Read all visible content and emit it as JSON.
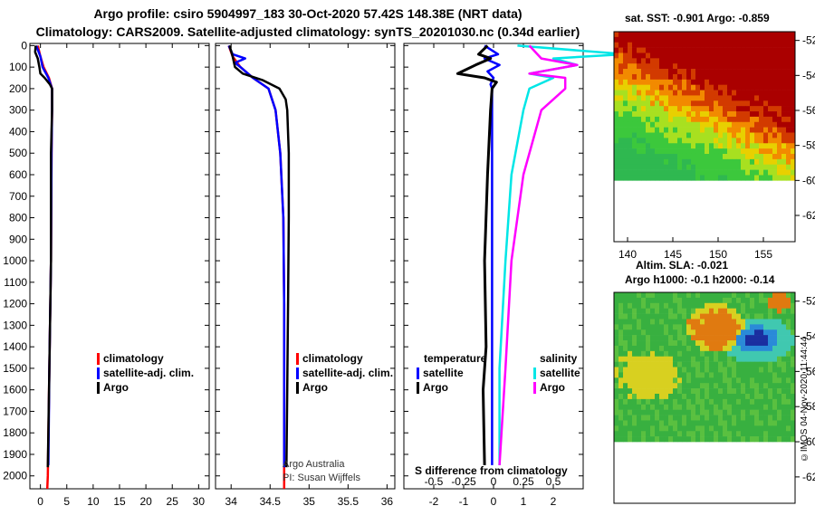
{
  "header": {
    "line1": "Argo profile: csiro 5904997_183 30-Oct-2020 57.42S 148.38E (NRT data)",
    "line2": "Climatology: CARS2009. Satellite-adjusted climatology: synTS_20201030.nc (0.34d earlier)"
  },
  "colors": {
    "climatology": "#ff0000",
    "satellite": "#0000ff",
    "argo": "#000000",
    "sat_salinity": "#00e6e6",
    "argo_salinity": "#ff00ff"
  },
  "chart_data": [
    {
      "type": "line",
      "id": "temperature",
      "xlabel": "",
      "ylabel": "",
      "ylim": [
        2060,
        -10
      ],
      "xlim": [
        -2,
        32
      ],
      "xticks": [
        "0",
        "5",
        "10",
        "15",
        "20",
        "25",
        "30"
      ],
      "xtick_values": [
        0,
        5,
        10,
        15,
        20,
        25,
        30
      ],
      "yticks": [
        "0",
        "100",
        "200",
        "300",
        "400",
        "500",
        "600",
        "700",
        "800",
        "900",
        "1000",
        "1100",
        "1200",
        "1300",
        "1400",
        "1500",
        "1600",
        "1700",
        "1800",
        "1900",
        "2000"
      ],
      "ytick_values": [
        0,
        100,
        200,
        300,
        400,
        500,
        600,
        700,
        800,
        900,
        1000,
        1100,
        1200,
        1300,
        1400,
        1500,
        1600,
        1700,
        1800,
        1900,
        2000
      ],
      "legend": [
        "climatology",
        "satellite-adj. clim.",
        "Argo"
      ],
      "series": [
        {
          "name": "climatology",
          "depth": [
            0,
            50,
            100,
            150,
            200,
            300,
            500,
            1000,
            1500,
            2000,
            2060
          ],
          "values": [
            -0.5,
            0,
            0.6,
            1.6,
            2.2,
            2.2,
            2.1,
            2.0,
            1.7,
            1.4,
            1.3
          ]
        },
        {
          "name": "satellite-adj. clim.",
          "depth": [
            0,
            50,
            100,
            150,
            200,
            300,
            500,
            1000,
            1500,
            1950
          ],
          "values": [
            -0.8,
            0,
            0.4,
            1.5,
            2.2,
            2.2,
            2.1,
            2.0,
            1.7,
            1.5
          ]
        },
        {
          "name": "Argo",
          "depth": [
            0,
            30,
            60,
            100,
            130,
            150,
            180,
            200,
            300,
            500,
            1000,
            1500,
            1960
          ],
          "values": [
            -0.9,
            -1.0,
            -0.5,
            -0.2,
            0.0,
            0.8,
            1.8,
            2.2,
            2.2,
            2.0,
            2.0,
            1.7,
            1.4
          ]
        }
      ]
    },
    {
      "type": "line",
      "id": "salinity",
      "ylim": [
        2060,
        -10
      ],
      "xlim": [
        33.8,
        36.1
      ],
      "xticks": [
        "34",
        "34.5",
        "35",
        "35.5",
        "36"
      ],
      "xtick_values": [
        34,
        34.5,
        35,
        35.5,
        36
      ],
      "legend": [
        "climatology",
        "satellite-adj. clim.",
        "Argo"
      ],
      "annotation_line1": "Argo Australia",
      "annotation_line2": "PI: Susan Wijffels",
      "series": [
        {
          "name": "climatology",
          "depth": [
            0,
            50,
            100,
            150,
            200,
            300,
            500,
            800,
            1200,
            1600,
            2060
          ],
          "values": [
            33.97,
            34.02,
            34.12,
            34.28,
            34.48,
            34.57,
            34.63,
            34.67,
            34.68,
            34.68,
            34.68
          ]
        },
        {
          "name": "satellite-adj. clim.",
          "depth": [
            0,
            40,
            60,
            80,
            100,
            150,
            200,
            300,
            500,
            800,
            1200,
            1600,
            1960
          ],
          "values": [
            33.97,
            34.02,
            34.18,
            34.05,
            34.12,
            34.28,
            34.48,
            34.57,
            34.63,
            34.67,
            34.68,
            34.68,
            34.68
          ]
        },
        {
          "name": "Argo",
          "depth": [
            0,
            50,
            100,
            130,
            160,
            200,
            250,
            300,
            500,
            800,
            1200,
            1600,
            1960
          ],
          "values": [
            33.98,
            34.02,
            34.05,
            34.15,
            34.4,
            34.62,
            34.7,
            34.72,
            34.74,
            34.74,
            34.73,
            34.72,
            34.71
          ]
        }
      ]
    },
    {
      "type": "line",
      "id": "difference",
      "xlabel": "S difference from climatology",
      "ylim": [
        2060,
        -10
      ],
      "xlim": [
        -3,
        3
      ],
      "xticks": [
        "-2",
        "-1",
        "0",
        "1",
        "2"
      ],
      "xtick_values": [
        -2,
        -1,
        0,
        1,
        2
      ],
      "xticks_salinity": [
        "-0.5",
        "-0.25",
        "0",
        "0.25",
        "0.5"
      ],
      "legend_temp_title": "temperature",
      "legend_sal_title": "salinity",
      "legend": [
        "satellite",
        "Argo",
        "satellite",
        "Argo"
      ],
      "series": [
        {
          "name": "satellite (temperature)",
          "depth": [
            0,
            40,
            60,
            90,
            120,
            150,
            180,
            200,
            300,
            600,
            1000,
            1500,
            1950
          ],
          "values": [
            -0.3,
            0.15,
            -0.3,
            0.2,
            -0.2,
            0.0,
            -0.1,
            -0.05,
            -0.05,
            -0.05,
            -0.05,
            -0.05,
            -0.05
          ]
        },
        {
          "name": "Argo (temperature)",
          "depth": [
            0,
            40,
            60,
            90,
            130,
            150,
            170,
            200,
            300,
            600,
            1000,
            1400,
            1600,
            1950
          ],
          "values": [
            -0.2,
            -0.5,
            -0.1,
            -0.6,
            -1.2,
            -0.3,
            0.1,
            -0.05,
            -0.1,
            -0.2,
            -0.3,
            -0.25,
            -0.35,
            -0.3
          ]
        },
        {
          "name": "satellite (salinity)",
          "depth": [
            0,
            40,
            60,
            90,
            130,
            150,
            200,
            300,
            600,
            1000,
            1500,
            1950
          ],
          "values": [
            0.2,
            1.1,
            0.5,
            0.7,
            0.3,
            0.5,
            0.3,
            0.25,
            0.15,
            0.1,
            0.05,
            0.05
          ]
        },
        {
          "name": "Argo (salinity)",
          "depth": [
            0,
            60,
            90,
            130,
            150,
            200,
            250,
            300,
            600,
            1000,
            1500,
            1950
          ],
          "values": [
            0.3,
            0.4,
            0.7,
            0.3,
            0.6,
            0.6,
            0.5,
            0.4,
            0.25,
            0.15,
            0.1,
            0.05
          ]
        }
      ]
    },
    {
      "type": "heatmap",
      "id": "sst_map",
      "title": "sat. SST: -0.901 Argo: -0.859",
      "yticks": [
        "-52",
        "-54",
        "-56",
        "-58",
        "-60",
        "-62"
      ],
      "ytick_values": [
        -52,
        -54,
        -56,
        -58,
        -60,
        -62
      ],
      "xticks": [
        "140",
        "145",
        "150",
        "155"
      ],
      "xtick_values": [
        140,
        145,
        150,
        155
      ],
      "lat_range": [
        -51.5,
        -63.5
      ],
      "lon_range": [
        138.5,
        158.5
      ]
    },
    {
      "type": "heatmap",
      "id": "sla_map",
      "title_line1": "Altim. SLA: -0.021",
      "title_line2": "Argo h1000: -0.1 h2000: -0.14",
      "yticks": [
        "-52",
        "-54",
        "-56",
        "-58",
        "-60",
        "-62"
      ],
      "ytick_values": [
        -52,
        -54,
        -56,
        -58,
        -60,
        -62
      ],
      "lat_range": [
        -51.5,
        -63.5
      ]
    }
  ],
  "footer": {
    "credit": "©IMOS 04-Nov-2020 11:44:44"
  }
}
